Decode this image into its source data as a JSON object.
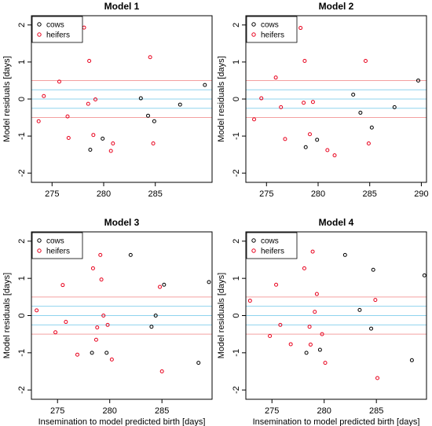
{
  "chart_data": [
    {
      "type": "scatter",
      "title": "Model 1",
      "xlabel": "",
      "ylabel": "Model residuals [days]",
      "xlim": [
        273,
        290.5
      ],
      "ylim": [
        -2.25,
        2.25
      ],
      "xticks": [
        275,
        280,
        285
      ],
      "yticks": [
        -2,
        -1,
        0,
        1,
        2
      ],
      "grid": false,
      "legend_position": "top-left",
      "hlines": [
        {
          "y": 0.5,
          "color": "#f4a0a0"
        },
        {
          "y": 0.25,
          "color": "#8fd3ee"
        },
        {
          "y": 0,
          "color": "#8fd3ee"
        },
        {
          "y": -0.25,
          "color": "#8fd3ee"
        },
        {
          "y": -0.5,
          "color": "#f4a0a0"
        }
      ],
      "series": [
        {
          "name": "cows",
          "color": "#000000",
          "points": [
            [
              278.7,
              -1.37
            ],
            [
              279.9,
              -1.07
            ],
            [
              283.6,
              0.02
            ],
            [
              284.3,
              -0.45
            ],
            [
              284.9,
              -0.6
            ],
            [
              287.4,
              -0.15
            ],
            [
              289.8,
              0.38
            ]
          ]
        },
        {
          "name": "heifers",
          "color": "#e8001c",
          "points": [
            [
              273.7,
              -0.6
            ],
            [
              274.2,
              0.08
            ],
            [
              275.7,
              0.47
            ],
            [
              276.5,
              -0.47
            ],
            [
              276.6,
              -1.05
            ],
            [
              278.1,
              1.93
            ],
            [
              278.5,
              -0.13
            ],
            [
              278.6,
              1.03
            ],
            [
              279.0,
              -0.97
            ],
            [
              279.2,
              -0.01
            ],
            [
              280.7,
              -1.4
            ],
            [
              280.9,
              -1.2
            ],
            [
              284.5,
              1.13
            ],
            [
              284.8,
              -1.2
            ]
          ]
        }
      ]
    },
    {
      "type": "scatter",
      "title": "Model 2",
      "xlabel": "",
      "ylabel": "Model residuals [days]",
      "xlim": [
        273,
        290.5
      ],
      "ylim": [
        -2.25,
        2.25
      ],
      "xticks": [
        275,
        280,
        285,
        290
      ],
      "yticks": [
        -2,
        -1,
        0,
        1,
        2
      ],
      "grid": false,
      "legend_position": "top-left",
      "hlines": [
        {
          "y": 0.5,
          "color": "#f4a0a0"
        },
        {
          "y": 0.25,
          "color": "#8fd3ee"
        },
        {
          "y": 0,
          "color": "#8fd3ee"
        },
        {
          "y": -0.25,
          "color": "#8fd3ee"
        },
        {
          "y": -0.5,
          "color": "#f4a0a0"
        }
      ],
      "series": [
        {
          "name": "cows",
          "color": "#000000",
          "points": [
            [
              278.8,
              -1.3
            ],
            [
              279.9,
              -1.1
            ],
            [
              283.4,
              0.12
            ],
            [
              284.1,
              -0.37
            ],
            [
              285.2,
              -0.77
            ],
            [
              287.4,
              -0.22
            ],
            [
              289.7,
              0.5
            ]
          ]
        },
        {
          "name": "heifers",
          "color": "#e8001c",
          "points": [
            [
              273.8,
              -0.55
            ],
            [
              274.5,
              0.02
            ],
            [
              275.9,
              0.58
            ],
            [
              276.4,
              -0.22
            ],
            [
              276.8,
              -1.08
            ],
            [
              278.3,
              1.92
            ],
            [
              278.6,
              -0.1
            ],
            [
              278.7,
              1.03
            ],
            [
              279.2,
              -0.95
            ],
            [
              279.5,
              -0.08
            ],
            [
              280.9,
              -1.38
            ],
            [
              281.6,
              -1.52
            ],
            [
              284.6,
              1.03
            ],
            [
              284.9,
              -1.2
            ]
          ]
        }
      ]
    },
    {
      "type": "scatter",
      "title": "Model 3",
      "xlabel": "Insemination to model predicted birth [days]",
      "ylabel": "Model residuals [days]",
      "xlim": [
        272.5,
        289.8
      ],
      "ylim": [
        -2.25,
        2.25
      ],
      "xticks": [
        275,
        280,
        285
      ],
      "yticks": [
        -2,
        -1,
        0,
        1,
        2
      ],
      "grid": false,
      "legend_position": "top-left",
      "hlines": [
        {
          "y": 0.5,
          "color": "#f4a0a0"
        },
        {
          "y": 0.25,
          "color": "#8fd3ee"
        },
        {
          "y": 0,
          "color": "#8fd3ee"
        },
        {
          "y": -0.25,
          "color": "#8fd3ee"
        },
        {
          "y": -0.5,
          "color": "#f4a0a0"
        }
      ],
      "series": [
        {
          "name": "cows",
          "color": "#000000",
          "points": [
            [
              278.3,
              -1.0
            ],
            [
              279.7,
              -1.0
            ],
            [
              282.0,
              1.63
            ],
            [
              284.0,
              -0.3
            ],
            [
              284.4,
              0.0
            ],
            [
              285.2,
              0.83
            ],
            [
              288.5,
              -1.27
            ],
            [
              289.5,
              0.9
            ]
          ]
        },
        {
          "name": "heifers",
          "color": "#e8001c",
          "points": [
            [
              273.0,
              0.14
            ],
            [
              274.8,
              -0.45
            ],
            [
              275.5,
              0.82
            ],
            [
              275.8,
              -0.17
            ],
            [
              276.9,
              -1.05
            ],
            [
              278.4,
              1.27
            ],
            [
              278.7,
              -0.65
            ],
            [
              278.8,
              -0.32
            ],
            [
              279.1,
              1.63
            ],
            [
              279.2,
              0.97
            ],
            [
              279.4,
              0.0
            ],
            [
              279.8,
              -0.25
            ],
            [
              280.2,
              -1.18
            ],
            [
              284.8,
              0.77
            ],
            [
              285.0,
              -1.5
            ]
          ]
        }
      ]
    },
    {
      "type": "scatter",
      "title": "Model 4",
      "xlabel": "Insemination to model predicted birth [days]",
      "ylabel": "Model residuals [days]",
      "xlim": [
        272.5,
        289.8
      ],
      "ylim": [
        -2.25,
        2.25
      ],
      "xticks": [
        275,
        280,
        285
      ],
      "yticks": [
        -2,
        -1,
        0,
        1,
        2
      ],
      "grid": false,
      "legend_position": "top-left",
      "hlines": [
        {
          "y": 0.5,
          "color": "#f4a0a0"
        },
        {
          "y": 0.25,
          "color": "#8fd3ee"
        },
        {
          "y": 0,
          "color": "#8fd3ee"
        },
        {
          "y": -0.25,
          "color": "#8fd3ee"
        },
        {
          "y": -0.5,
          "color": "#f4a0a0"
        }
      ],
      "series": [
        {
          "name": "cows",
          "color": "#000000",
          "points": [
            [
              278.3,
              -1.0
            ],
            [
              279.6,
              -0.92
            ],
            [
              282.0,
              1.63
            ],
            [
              283.4,
              0.15
            ],
            [
              284.5,
              -0.35
            ],
            [
              284.7,
              1.23
            ],
            [
              288.4,
              -1.2
            ],
            [
              289.6,
              1.08
            ]
          ]
        },
        {
          "name": "heifers",
          "color": "#e8001c",
          "points": [
            [
              272.9,
              0.4
            ],
            [
              274.8,
              -0.55
            ],
            [
              275.4,
              0.83
            ],
            [
              275.8,
              -0.25
            ],
            [
              276.8,
              -0.77
            ],
            [
              278.1,
              1.27
            ],
            [
              278.6,
              -0.3
            ],
            [
              278.7,
              -0.78
            ],
            [
              278.9,
              1.72
            ],
            [
              279.1,
              0.1
            ],
            [
              279.3,
              0.58
            ],
            [
              279.8,
              -0.5
            ],
            [
              280.1,
              -1.27
            ],
            [
              284.9,
              0.42
            ],
            [
              285.1,
              -1.68
            ]
          ]
        }
      ]
    }
  ]
}
